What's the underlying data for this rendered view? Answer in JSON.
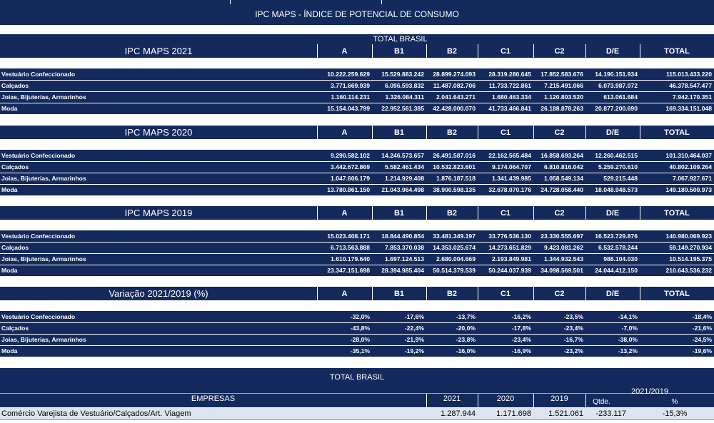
{
  "title": "IPC MAPS - ÍNDICE DE POTENCIAL DE CONSUMO",
  "total_label": "TOTAL BRASIL",
  "columns": [
    "A",
    "B1",
    "B2",
    "C1",
    "C2",
    "D/E",
    "TOTAL"
  ],
  "row_labels": [
    "Vestuário Confeccionado",
    "Calçados",
    "Joias, Bijuterias, Armarinhos",
    "Moda"
  ],
  "tables": [
    {
      "title": "IPC MAPS 2021",
      "rows": [
        [
          "10.222.259.629",
          "15.529.883.242",
          "28.899.274.093",
          "28.319.280.645",
          "17.852.583.676",
          "14.190.151.934",
          "115.013.433.220"
        ],
        [
          "3.771.669.939",
          "6.096.593.832",
          "11.487.082.706",
          "11.733.722.861",
          "7.215.491.066",
          "6.073.987.072",
          "46.378.547.477"
        ],
        [
          "1.160.114.231",
          "1.326.084.311",
          "2.041.643.271",
          "1.680.463.334",
          "1.120.803.520",
          "613.061.684",
          "7.942.170.351"
        ],
        [
          "15.154.043.799",
          "22.952.561.385",
          "42.428.000.070",
          "41.733.466.841",
          "26.188.878.263",
          "20.877.200.690",
          "169.334.151.048"
        ]
      ]
    },
    {
      "title": "IPC MAPS 2020",
      "rows": [
        [
          "9.290.582.102",
          "14.246.573.657",
          "26.491.587.016",
          "22.162.565.484",
          "16.858.693.264",
          "12.260.462.515",
          "101.310.464.037"
        ],
        [
          "3.442.672.869",
          "5.582.461.434",
          "10.532.823.601",
          "9.174.064.707",
          "6.810.816.042",
          "5.259.270.610",
          "40.802.109.264"
        ],
        [
          "1.047.606.179",
          "1.214.929.408",
          "1.876.187.518",
          "1.341.439.985",
          "1.058.549.134",
          "529.215.448",
          "7.067.927.671"
        ],
        [
          "13.780.861.150",
          "21.043.964.498",
          "38.900.598.135",
          "32.678.070.176",
          "24.728.058.440",
          "18.048.948.573",
          "149.180.500.973"
        ]
      ]
    },
    {
      "title": "IPC MAPS 2019",
      "rows": [
        [
          "15.023.408.171",
          "18.844.490.854",
          "33.481.349.197",
          "33.776.536.130",
          "23.330.555.697",
          "16.523.729.876",
          "140.980.069.923"
        ],
        [
          "6.713.563.888",
          "7.853.370.038",
          "14.353.025.674",
          "14.273.651.829",
          "9.423.081.262",
          "6.532.578.244",
          "59.149.270.934"
        ],
        [
          "1.610.179.640",
          "1.697.124.513",
          "2.680.004.669",
          "2.193.849.981",
          "1.344.932.543",
          "988.104.030",
          "10.514.195.375"
        ],
        [
          "23.347.151.698",
          "28.394.985.404",
          "50.514.379.539",
          "50.244.037.939",
          "34.098.569.501",
          "24.044.412.150",
          "210.643.536.232"
        ]
      ]
    },
    {
      "title": "Variação 2021/2019 (%)",
      "rows": [
        [
          "-32,0%",
          "-17,6%",
          "-13,7%",
          "-16,2%",
          "-23,5%",
          "-14,1%",
          "-18,4%"
        ],
        [
          "-43,8%",
          "-22,4%",
          "-20,0%",
          "-17,8%",
          "-23,4%",
          "-7,0%",
          "-21,6%"
        ],
        [
          "-28,0%",
          "-21,9%",
          "-23,8%",
          "-23,4%",
          "-16,7%",
          "-38,0%",
          "-24,5%"
        ],
        [
          "-35,1%",
          "-19,2%",
          "-16,0%",
          "-16,9%",
          "-23,2%",
          "-13,2%",
          "-19,6%"
        ]
      ]
    }
  ],
  "bottom": {
    "total_label": "TOTAL BRASIL",
    "empresas_label": "EMPRESAS",
    "year_2021": "2021",
    "year_2020": "2020",
    "year_2019": "2019",
    "variation_label": "2021/2019",
    "qtde_label": "Qtde.",
    "pct_label": "%",
    "row": {
      "label": "Comércio Varejista de Vestuário/Calçados/Art. Viagem",
      "v2021": "1.287.944",
      "v2020": "1.171.698",
      "v2019": "1.521.061",
      "qtde": "-233.117",
      "pct": "-15,3%"
    }
  },
  "colors": {
    "navy": "#142a5c",
    "row_light": "#dde4ef"
  }
}
